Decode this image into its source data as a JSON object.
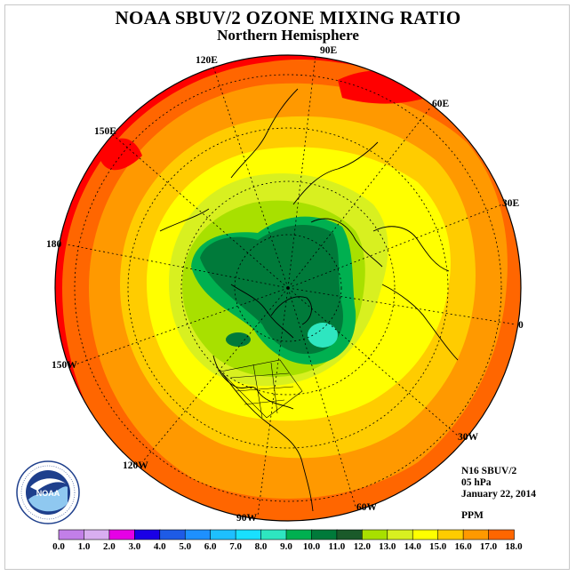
{
  "header": {
    "title": "NOAA SBUV/2 OZONE MIXING RATIO",
    "subtitle": "Northern Hemisphere"
  },
  "map": {
    "projection": "north-polar-stereographic",
    "longitude_labels": [
      "90E",
      "60E",
      "30E",
      "0",
      "30W",
      "60W",
      "90W",
      "120W",
      "150W",
      "180",
      "150E",
      "120E"
    ],
    "field_levels_ppm": {
      "outer_ring": 16.0,
      "ring_2": 15.0,
      "ring_3": 14.0,
      "ring_4": 13.0,
      "ring_5": 12.0,
      "ring_6": 11.0,
      "ring_7": 10.0,
      "core": 9.0,
      "minimum": 7.0
    }
  },
  "info": {
    "instrument": "N16 SBUV/2",
    "pressure": "05 hPa",
    "date": "January 22, 2014",
    "units": "PPM"
  },
  "logo": {
    "name": "NOAA",
    "ring_text": "NATIONAL OCEANIC AND ATMOSPHERIC ADMINISTRATION U.S. DEPARTMENT OF COMMERCE"
  },
  "colorbar": {
    "ticks": [
      "0.0",
      "1.0",
      "2.0",
      "3.0",
      "4.0",
      "5.0",
      "6.0",
      "7.0",
      "8.0",
      "9.0",
      "10.0",
      "11.0",
      "12.0",
      "13.0",
      "14.0",
      "15.0",
      "16.0",
      "17.0",
      "18.0"
    ],
    "colors": [
      "#c27fe8",
      "#d8aef0",
      "#e600e6",
      "#1a00e6",
      "#1e5be6",
      "#1e90ff",
      "#1ebfff",
      "#19e0ff",
      "#2ee6c0",
      "#00b050",
      "#007a3a",
      "#1a5a2a",
      "#a8e000",
      "#d8f020",
      "#ffff00",
      "#ffcc00",
      "#ff9900",
      "#ff6600",
      "#ff0000",
      "#8b5a3c"
    ]
  }
}
